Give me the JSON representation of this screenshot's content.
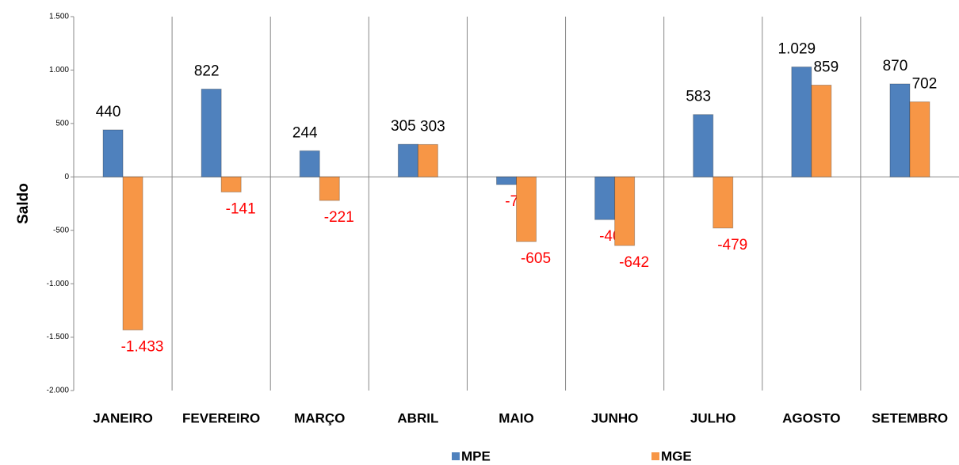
{
  "chart_data": {
    "type": "bar",
    "y_label": "Saldo",
    "categories": [
      "JANEIRO",
      "FEVEREIRO",
      "MARÇO",
      "ABRIL",
      "MAIO",
      "JUNHO",
      "JULHO",
      "AGOSTO",
      "SETEMBRO"
    ],
    "series": [
      {
        "name": "MPE",
        "color": "#4f81bd",
        "values": [
          440,
          822,
          244,
          305,
          -72,
          -400,
          583,
          1029,
          870
        ],
        "value_labels": [
          "440",
          "822",
          "244",
          "305",
          "-72",
          "-400",
          "583",
          "1.029",
          "870"
        ]
      },
      {
        "name": "MGE",
        "color": "#f79646",
        "values": [
          -1433,
          -141,
          -221,
          303,
          -605,
          -642,
          -479,
          859,
          702
        ],
        "value_labels": [
          "-1.433",
          "-141",
          "-221",
          "303",
          "-605",
          "-642",
          "-479",
          "859",
          "702"
        ]
      }
    ],
    "ylim": [
      -2000,
      1500
    ],
    "yticks": [
      {
        "value": -2000,
        "label": "-2.000"
      },
      {
        "value": -1500,
        "label": "-1.500"
      },
      {
        "value": -1000,
        "label": "-1.000"
      },
      -500,
      0,
      500,
      {
        "value": 1000,
        "label": "1.000"
      },
      {
        "value": 1500,
        "label": "1.500"
      }
    ],
    "legend": "bottom"
  }
}
